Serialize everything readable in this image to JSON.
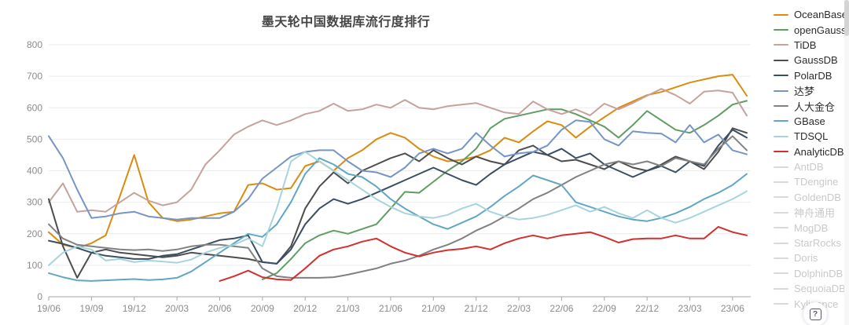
{
  "header": {
    "title": "墨天轮中国数据库流行度排行"
  },
  "help_button": {
    "label": "?"
  },
  "chart_data": {
    "type": "line",
    "title": "墨天轮中国数据库流行度排行",
    "xlabel": "",
    "ylabel": "",
    "ylim": [
      0,
      800
    ],
    "y_ticks": [
      0,
      100,
      200,
      300,
      400,
      500,
      600,
      700,
      800
    ],
    "grid": true,
    "legend_position": "right",
    "grid_color": "#e4edf5",
    "axis_color": "#a6a6a6",
    "label_color": "#8b8b8b",
    "disabled_color": "#d9d9d9",
    "x_tick_labels": [
      "19/06",
      "19/09",
      "19/12",
      "20/03",
      "20/06",
      "20/09",
      "20/12",
      "21/03",
      "21/06",
      "21/09",
      "21/12",
      "22/03",
      "22/06",
      "22/09",
      "22/12",
      "23/03",
      "23/06"
    ],
    "x_months": [
      "19/06",
      "19/07",
      "19/08",
      "19/09",
      "19/10",
      "19/11",
      "19/12",
      "20/01",
      "20/02",
      "20/03",
      "20/04",
      "20/05",
      "20/06",
      "20/07",
      "20/08",
      "20/09",
      "20/10",
      "20/11",
      "20/12",
      "21/01",
      "21/02",
      "21/03",
      "21/04",
      "21/05",
      "21/06",
      "21/07",
      "21/08",
      "21/09",
      "21/10",
      "21/11",
      "21/12",
      "22/01",
      "22/02",
      "22/03",
      "22/04",
      "22/05",
      "22/06",
      "22/07",
      "22/08",
      "22/09",
      "22/10",
      "22/11",
      "22/12",
      "23/01",
      "23/02",
      "23/03",
      "23/04",
      "23/05",
      "23/06",
      "23/07"
    ],
    "series": [
      {
        "name": "OceanBase",
        "color": "#d98c0d",
        "enabled": true,
        "values": [
          205,
          165,
          155,
          170,
          195,
          320,
          450,
          300,
          250,
          240,
          245,
          255,
          265,
          270,
          355,
          360,
          340,
          345,
          415,
          430,
          400,
          440,
          465,
          500,
          520,
          505,
          470,
          445,
          430,
          435,
          445,
          465,
          505,
          490,
          525,
          557,
          545,
          505,
          540,
          570,
          600,
          620,
          640,
          650,
          665,
          680,
          690,
          700,
          705,
          638
        ]
      },
      {
        "name": "openGauss",
        "color": "#619c63",
        "enabled": true,
        "values": [
          null,
          null,
          null,
          null,
          null,
          null,
          null,
          null,
          null,
          null,
          null,
          null,
          null,
          null,
          null,
          55,
          75,
          120,
          170,
          195,
          210,
          200,
          215,
          230,
          280,
          333,
          330,
          365,
          400,
          430,
          470,
          535,
          565,
          575,
          585,
          595,
          595,
          580,
          560,
          540,
          505,
          545,
          590,
          560,
          530,
          520,
          545,
          575,
          610,
          622
        ]
      },
      {
        "name": "TiDB",
        "color": "#c6a29c",
        "enabled": true,
        "values": [
          300,
          360,
          270,
          275,
          270,
          300,
          330,
          305,
          290,
          300,
          340,
          420,
          465,
          515,
          540,
          560,
          545,
          560,
          580,
          590,
          613,
          590,
          595,
          610,
          600,
          625,
          600,
          595,
          605,
          610,
          615,
          600,
          585,
          580,
          620,
          595,
          580,
          595,
          576,
          613,
          595,
          615,
          638,
          660,
          640,
          613,
          651,
          655,
          648,
          575
        ]
      },
      {
        "name": "GaussDB",
        "color": "#4d4d4d",
        "enabled": true,
        "values": [
          310,
          160,
          60,
          140,
          150,
          140,
          135,
          130,
          125,
          130,
          140,
          135,
          130,
          125,
          120,
          110,
          105,
          160,
          280,
          350,
          395,
          360,
          400,
          420,
          440,
          455,
          430,
          465,
          440,
          420,
          445,
          430,
          420,
          465,
          480,
          450,
          430,
          435,
          420,
          405,
          430,
          410,
          400,
          420,
          445,
          430,
          405,
          460,
          535,
          520
        ]
      },
      {
        "name": "PolarDB",
        "color": "#3a4e63",
        "enabled": true,
        "values": [
          178,
          168,
          155,
          140,
          130,
          125,
          120,
          120,
          130,
          135,
          150,
          165,
          180,
          185,
          195,
          110,
          105,
          150,
          230,
          280,
          310,
          295,
          310,
          330,
          350,
          370,
          390,
          410,
          390,
          370,
          355,
          390,
          420,
          440,
          460,
          450,
          470,
          440,
          455,
          420,
          400,
          380,
          400,
          415,
          395,
          430,
          415,
          480,
          530,
          505
        ]
      },
      {
        "name": "达梦",
        "color": "#7595c6",
        "enabled": true,
        "values": [
          510,
          440,
          340,
          250,
          255,
          265,
          270,
          255,
          250,
          245,
          250,
          250,
          250,
          270,
          310,
          375,
          410,
          445,
          460,
          465,
          465,
          430,
          400,
          395,
          380,
          410,
          455,
          470,
          455,
          470,
          520,
          480,
          445,
          455,
          460,
          480,
          530,
          560,
          555,
          500,
          480,
          525,
          520,
          518,
          490,
          545,
          490,
          515,
          465,
          452
        ]
      },
      {
        "name": "人大金仓",
        "color": "#818181",
        "enabled": true,
        "values": [
          230,
          185,
          165,
          160,
          155,
          150,
          148,
          150,
          145,
          150,
          160,
          165,
          165,
          160,
          155,
          90,
          65,
          60,
          60,
          60,
          62,
          70,
          80,
          90,
          105,
          115,
          130,
          150,
          165,
          185,
          210,
          230,
          255,
          280,
          310,
          330,
          355,
          380,
          400,
          420,
          430,
          420,
          430,
          415,
          440,
          430,
          420,
          470,
          510,
          465
        ]
      },
      {
        "name": "GBase",
        "color": "#61a7c3",
        "enabled": true,
        "values": [
          75,
          62,
          52,
          50,
          52,
          54,
          56,
          53,
          55,
          60,
          80,
          110,
          140,
          170,
          200,
          190,
          230,
          300,
          390,
          440,
          420,
          390,
          380,
          350,
          310,
          280,
          255,
          230,
          215,
          235,
          255,
          285,
          320,
          350,
          385,
          370,
          355,
          300,
          285,
          270,
          255,
          245,
          240,
          250,
          265,
          285,
          310,
          330,
          355,
          390
        ]
      },
      {
        "name": "TDSQL",
        "color": "#a7d4dc",
        "enabled": true,
        "values": [
          100,
          140,
          160,
          150,
          115,
          120,
          110,
          115,
          112,
          108,
          118,
          140,
          155,
          165,
          185,
          160,
          280,
          430,
          460,
          430,
          400,
          370,
          340,
          310,
          285,
          265,
          255,
          250,
          260,
          280,
          295,
          270,
          255,
          245,
          250,
          260,
          275,
          290,
          270,
          285,
          265,
          250,
          275,
          250,
          235,
          250,
          270,
          290,
          310,
          335
        ]
      },
      {
        "name": "AnalyticDB",
        "color": "#d32f2c",
        "enabled": true,
        "values": [
          null,
          null,
          null,
          null,
          null,
          null,
          null,
          null,
          null,
          null,
          null,
          null,
          50,
          65,
          83,
          62,
          55,
          53,
          90,
          130,
          150,
          160,
          175,
          185,
          160,
          140,
          128,
          140,
          148,
          152,
          160,
          150,
          170,
          185,
          195,
          185,
          195,
          200,
          205,
          190,
          172,
          183,
          185,
          185,
          195,
          185,
          185,
          222,
          205,
          195
        ]
      },
      {
        "name": "AntDB",
        "color": "#d9d9d9",
        "enabled": false,
        "values": null
      },
      {
        "name": "TDengine",
        "color": "#d9d9d9",
        "enabled": false,
        "values": null
      },
      {
        "name": "GoldenDB",
        "color": "#d9d9d9",
        "enabled": false,
        "values": null
      },
      {
        "name": "神舟通用",
        "color": "#d9d9d9",
        "enabled": false,
        "values": null
      },
      {
        "name": "MogDB",
        "color": "#d9d9d9",
        "enabled": false,
        "values": null
      },
      {
        "name": "StarRocks",
        "color": "#d9d9d9",
        "enabled": false,
        "values": null
      },
      {
        "name": "Doris",
        "color": "#d9d9d9",
        "enabled": false,
        "values": null
      },
      {
        "name": "DolphinDB",
        "color": "#d9d9d9",
        "enabled": false,
        "values": null
      },
      {
        "name": "SequoiaDB",
        "color": "#d9d9d9",
        "enabled": false,
        "values": null
      },
      {
        "name": "Kyligence",
        "color": "#d9d9d9",
        "enabled": false,
        "values": null
      }
    ]
  }
}
